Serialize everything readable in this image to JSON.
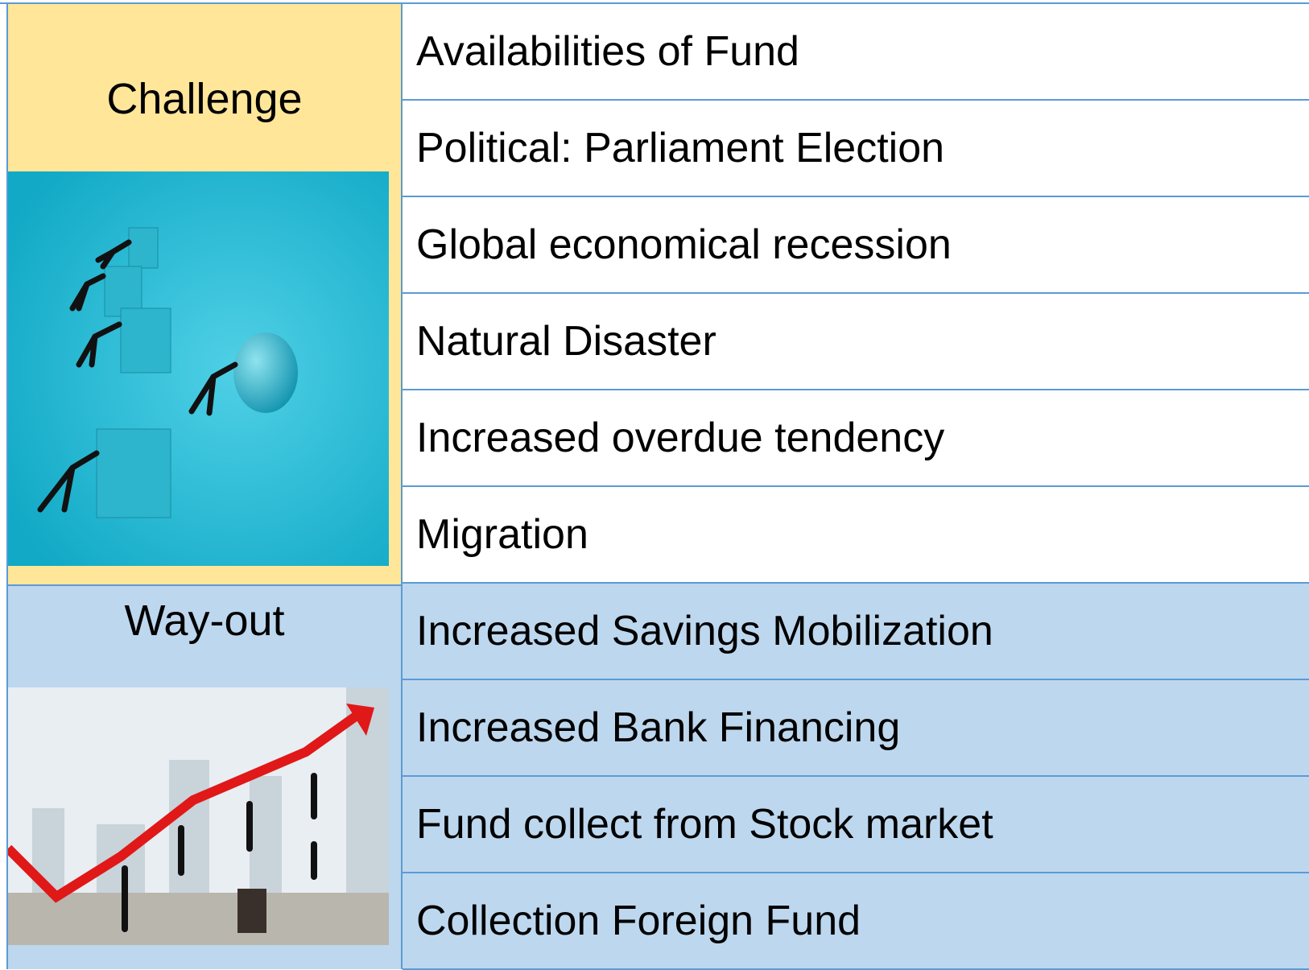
{
  "challenge": {
    "label": "Challenge",
    "items": [
      "Availabilities of Fund",
      "Political: Parliament Election",
      "Global economical recession",
      "Natural Disaster",
      "Increased overdue tendency",
      "Migration"
    ]
  },
  "way_out": {
    "label": "Way-out",
    "items": [
      "Increased Savings Mobilization",
      "Increased Bank Financing",
      "Fund collect from Stock market",
      "Collection Foreign Fund"
    ]
  }
}
